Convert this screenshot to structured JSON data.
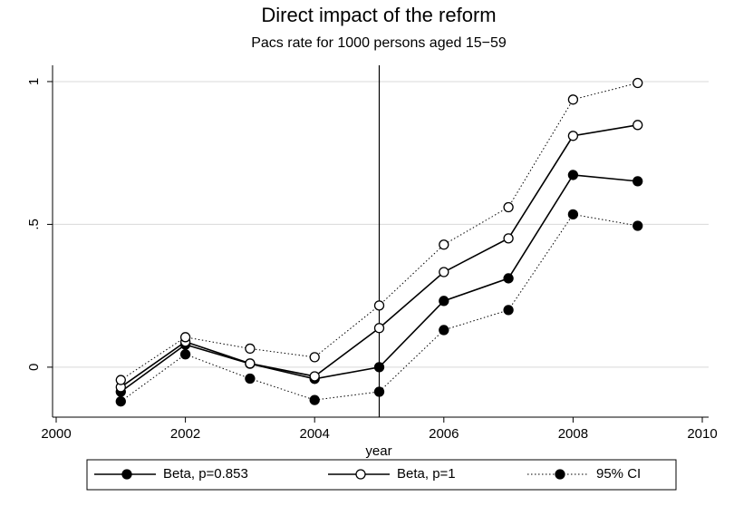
{
  "chart_data": {
    "type": "line",
    "title": "Direct impact of the reform",
    "subtitle": "Pacs rate for 1000 persons aged 15−59",
    "xlabel": "year",
    "x": [
      2001,
      2002,
      2003,
      2004,
      2005,
      2006,
      2007,
      2008,
      2009
    ],
    "xlim": [
      2000,
      2010
    ],
    "xticks": [
      2000,
      2002,
      2004,
      2006,
      2008,
      2010
    ],
    "ylim": [
      -0.175,
      1.057
    ],
    "yticks": [
      0,
      {
        "value": 0.5,
        "label": ".5"
      },
      1
    ],
    "grid": true,
    "xline": 2005,
    "series": [
      {
        "name": "Beta, p=0.853",
        "color": "#000000",
        "line": "solid",
        "marker": "filled",
        "values": [
          -0.086,
          0.079,
          0.012,
          -0.041,
          0,
          0.232,
          0.311,
          0.673,
          0.651
        ]
      },
      {
        "name": "Beta, p=1",
        "color": "#000000",
        "line": "solid",
        "marker": "hollow",
        "values": [
          -0.07,
          0.089,
          0.013,
          -0.032,
          0.137,
          0.333,
          0.451,
          0.81,
          0.848
        ]
      },
      {
        "name": "95% CI",
        "color": "#000000",
        "line": "dotted",
        "marker": "filled",
        "upper_marker": "hollow",
        "values": [
          -0.12,
          0.045,
          -0.04,
          -0.115,
          -0.086,
          0.13,
          0.2,
          0.535,
          0.495
        ],
        "upper": [
          -0.045,
          0.105,
          0.065,
          0.035,
          0.216,
          0.429,
          0.56,
          0.937,
          0.995
        ]
      }
    ]
  }
}
